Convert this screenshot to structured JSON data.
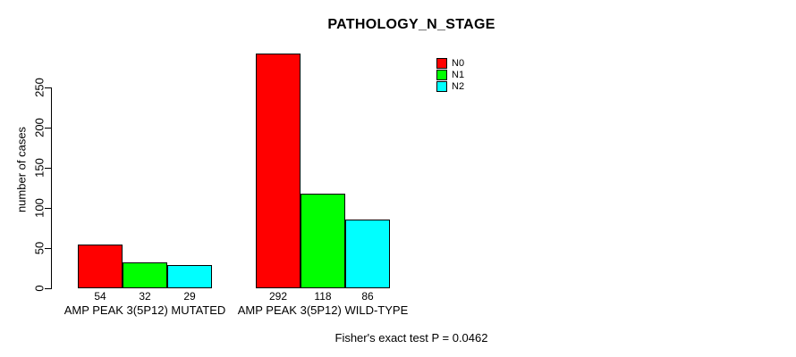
{
  "title": "PATHOLOGY_N_STAGE",
  "footer": "Fisher's exact test P = 0.0462",
  "chart_data": {
    "type": "bar",
    "title": "PATHOLOGY_N_STAGE",
    "categories": [
      "AMP PEAK 3(5P12) MUTATED",
      "AMP PEAK 3(5P12) WILD-TYPE"
    ],
    "series": [
      {
        "name": "N0",
        "color": "#FF0000",
        "values": [
          54,
          292
        ]
      },
      {
        "name": "N1",
        "color": "#00FF00",
        "values": [
          32,
          118
        ]
      },
      {
        "name": "N2",
        "color": "#00FFFF",
        "values": [
          29,
          86
        ]
      }
    ],
    "ylabel": "number of cases",
    "yticks": [
      0,
      50,
      100,
      150,
      200,
      250
    ],
    "ylim": [
      0,
      292
    ],
    "bar_value_labels": [
      [
        54,
        32,
        29
      ],
      [
        292,
        118,
        86
      ]
    ],
    "grid": false,
    "legend_position": "top-right",
    "annotation": "Fisher's exact test P = 0.0462"
  }
}
